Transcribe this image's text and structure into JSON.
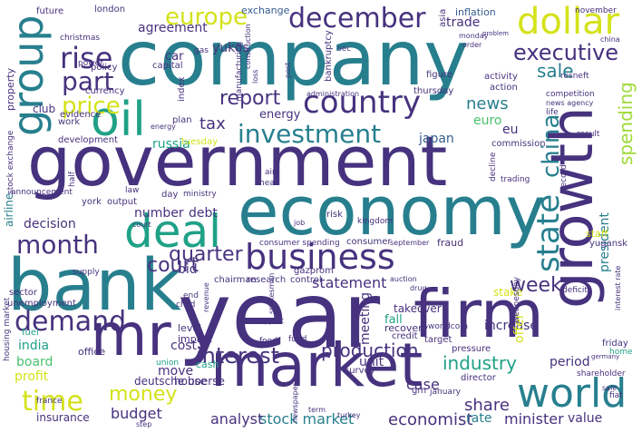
{
  "word_cloud": {
    "words": [
      "company",
      "government",
      "year",
      "economy",
      "bank",
      "firm",
      "market",
      "growth",
      "mr",
      "oil",
      "deal",
      "business",
      "dollar",
      "december",
      "world",
      "group",
      "country",
      "investment",
      "rise",
      "europe",
      "part",
      "price",
      "month",
      "demand",
      "interest",
      "quarter",
      "report",
      "court",
      "state",
      "china",
      "executive",
      "sale",
      "time",
      "money",
      "industry",
      "week",
      "spending",
      "news",
      "tax",
      "production",
      "stock market",
      "economist",
      "share",
      "minister",
      "value",
      "analyst",
      "budget",
      "statement",
      "case",
      "rate",
      "yukos",
      "trade",
      "agreement",
      "euro",
      "japan",
      "eu",
      "energy",
      "russia",
      "debt",
      "number",
      "decision",
      "india",
      "board",
      "profit",
      "insurance",
      "cost",
      "move",
      "deutsche boerse",
      "unit",
      "meeting",
      "fall",
      "increase",
      "offer",
      "president",
      "period",
      "staff",
      "stake",
      "fraud",
      "bid",
      "level",
      "impact",
      "cash",
      "office",
      "house",
      "consumer spending",
      "september",
      "consumer",
      "takeover",
      "research",
      "control",
      "gazprom",
      "chairman",
      "yugansk",
      "director",
      "survey",
      "recovery",
      "target",
      "credit",
      "pressure",
      "worldcom",
      "wednesday",
      "friday",
      "home",
      "shareholder",
      "fiat",
      "gm",
      "newspaper",
      "term",
      "turkey",
      "january",
      "airline",
      "fuel",
      "exchange",
      "inflation",
      "november",
      "london",
      "future",
      "asia",
      "property",
      "club",
      "work",
      "evidence",
      "announcement",
      "development",
      "tuesday",
      "plan",
      "car",
      "capital",
      "policy",
      "power",
      "currency",
      "index",
      "bankruptcy",
      "manufacturing",
      "loss",
      "activity",
      "thursday",
      "action",
      "rosneft",
      "competition",
      "news agency",
      "life",
      "result",
      "commission",
      "trading",
      "record",
      "decline",
      "half",
      "york",
      "output",
      "law",
      "day",
      "ministry",
      "air",
      "head",
      "risk",
      "job",
      "kingdom",
      "sector",
      "unemployment",
      "housing market",
      "end",
      "child",
      "revenue",
      "auction",
      "drug",
      "deficit",
      "interest rate",
      "support",
      "spokesman",
      "food",
      "fund",
      "union",
      "sec",
      "post",
      "administration",
      "gas",
      "construction",
      "figure",
      "christmas",
      "monday",
      "order",
      "problem",
      "china",
      "stock exchange",
      "france",
      "germany",
      "energy",
      "supply",
      "court",
      "sale",
      "step"
    ]
  }
}
